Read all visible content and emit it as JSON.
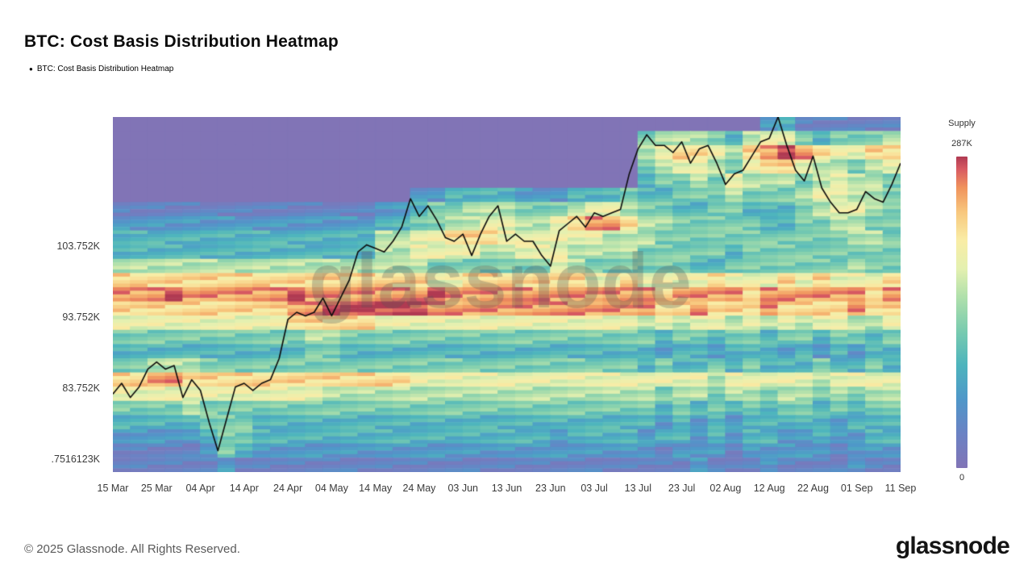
{
  "header": {
    "title": "BTC: Cost Basis Distribution Heatmap"
  },
  "legend": {
    "marker": "●",
    "label": "BTC: Cost Basis Distribution Heatmap"
  },
  "watermark": "glassnode",
  "colorbar": {
    "title": "Supply",
    "max_label": "287K",
    "min_label": "0"
  },
  "footer": {
    "copyright": "© 2025 Glassnode. All Rights Reserved.",
    "brand": "glassnode"
  },
  "chart_data": {
    "type": "heatmap",
    "title": "BTC: Cost Basis Distribution Heatmap",
    "x_axis": {
      "span_days": 180,
      "ticks": [
        {
          "day": 0,
          "label": "15 Mar"
        },
        {
          "day": 10,
          "label": "25 Mar"
        },
        {
          "day": 20,
          "label": "04 Apr"
        },
        {
          "day": 30,
          "label": "14 Apr"
        },
        {
          "day": 40,
          "label": "24 Apr"
        },
        {
          "day": 50,
          "label": "04 May"
        },
        {
          "day": 60,
          "label": "14 May"
        },
        {
          "day": 70,
          "label": "24 May"
        },
        {
          "day": 80,
          "label": "03 Jun"
        },
        {
          "day": 90,
          "label": "13 Jun"
        },
        {
          "day": 100,
          "label": "23 Jun"
        },
        {
          "day": 110,
          "label": "03 Jul"
        },
        {
          "day": 120,
          "label": "13 Jul"
        },
        {
          "day": 130,
          "label": "23 Jul"
        },
        {
          "day": 140,
          "label": "02 Aug"
        },
        {
          "day": 150,
          "label": "12 Aug"
        },
        {
          "day": 160,
          "label": "22 Aug"
        },
        {
          "day": 170,
          "label": "01 Sep"
        },
        {
          "day": 180,
          "label": "11 Sep"
        }
      ]
    },
    "y_axis": {
      "unit": "K USD",
      "top_value": 122,
      "bottom_value": 72,
      "ticks": [
        {
          "value": 103.752,
          "label": "103.752K"
        },
        {
          "value": 93.752,
          "label": "93.752K"
        },
        {
          "value": 83.752,
          "label": "83.752K"
        },
        {
          "value": 73.7516123,
          "label": ".7516123K"
        }
      ]
    },
    "colormap": {
      "supply_min": 0,
      "supply_max_label": "287K",
      "stops": [
        [
          0.0,
          "#8174b6"
        ],
        [
          0.11,
          "#6b82c4"
        ],
        [
          0.22,
          "#4f97c9"
        ],
        [
          0.33,
          "#4db4bd"
        ],
        [
          0.44,
          "#79cbaf"
        ],
        [
          0.55,
          "#b0e0ab"
        ],
        [
          0.64,
          "#e4f0b0"
        ],
        [
          0.73,
          "#f9eda6"
        ],
        [
          0.82,
          "#f8c87e"
        ],
        [
          0.9,
          "#f0935c"
        ],
        [
          0.96,
          "#d85a62"
        ],
        [
          1.0,
          "#b03a52"
        ]
      ]
    },
    "heatmap": {
      "rows": 25,
      "cols": 45,
      "row_top_value_k": 122,
      "row_height_k": 2,
      "intensity_max": 9,
      "matrix": [
        "000000000000000000000000000000000000023111111",
        "000000000000000000000000000000455543566434445",
        "000000000000000000000000000000567765789876677",
        "000000000000000000000000000000456654677655456",
        "000000000000000000000000000000344546555456554",
        "000000000000000002233332223334334445444566554",
        "111111111111111223445554445665443344333456654",
        "222222222222222334455665567887554444433445544",
        "333333333333333556677766666655544444444444554",
        "333333333333333556666556665555444443444444444",
        "555555555555555555444444465444444334444444544",
        "777777777777777777667777777667666676667676667",
        "888988888898888888988888888888878888788888878",
        "777777777788999999888888888888877877787777877",
        "666666666677777666666666666666565665656566556",
        "444444444445544444444444444444434434434434434",
        "333333333334433333333333333333323323332323233",
        "445554444444444444444444444444343343433343343",
        "778877777777777776666666666666666656666656666",
        "666666666666555555555555555555545545545545455",
        "444454444444444444444444444444434343434434344",
        "333334443333333333333333333333323232333332333",
        "222223443333333333333333323333233232332232233",
        "111112432222222222222222222222212221222221222",
        "111111211111111111111111111111111211121111211"
      ]
    },
    "price_line": {
      "name": "BTC price",
      "color": "#0d0d0d",
      "unit": "K USD",
      "step_days": 2,
      "values": [
        83,
        84.5,
        82.5,
        84,
        86.5,
        87.5,
        86.5,
        87,
        82.5,
        85,
        83.5,
        79,
        75,
        79.5,
        84,
        84.5,
        83.5,
        84.5,
        85,
        88,
        93.5,
        94.5,
        94,
        94.5,
        96.5,
        94,
        96.5,
        99,
        103,
        104,
        103.5,
        103,
        104.5,
        106.5,
        110.5,
        108,
        109.5,
        107.5,
        105,
        104.5,
        105.5,
        102.5,
        105.5,
        108,
        109.5,
        104.5,
        105.5,
        104.5,
        104.5,
        102.5,
        101,
        106,
        107,
        108,
        106.5,
        108.5,
        108,
        108.5,
        109,
        114,
        117.5,
        119.5,
        118,
        118,
        117,
        118.5,
        115.5,
        117.5,
        118,
        115.5,
        112.5,
        114,
        114.5,
        116.5,
        118.5,
        119,
        122,
        118,
        114.5,
        113,
        116.5,
        112,
        110,
        108.5,
        108.5,
        109,
        111.5,
        110.5,
        110,
        112.5,
        115.5
      ]
    }
  }
}
